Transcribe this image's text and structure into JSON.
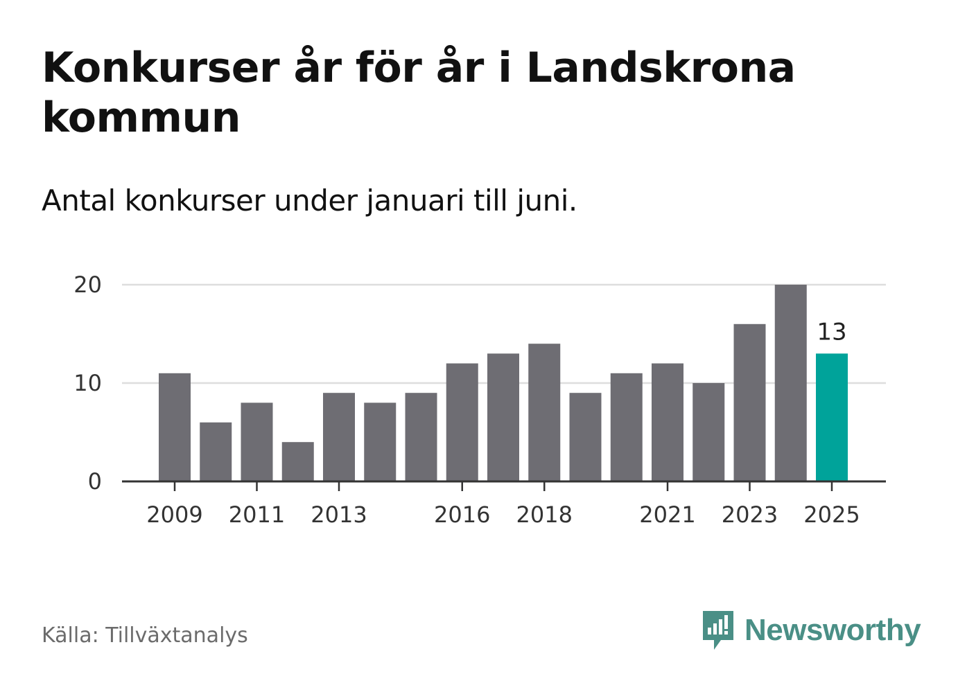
{
  "title": "Konkurser år för år i Landskrona kommun",
  "subtitle": "Antal konkurser under januari till juni.",
  "source": "Källa: Tillväxtanalys",
  "brand": {
    "name": "Newsworthy",
    "icon": "newsworthy-logo-icon",
    "color": "#4a8f86"
  },
  "colors": {
    "bar": "#6e6d73",
    "highlight": "#00a39a",
    "grid": "#dddddd",
    "axis": "#333333"
  },
  "chart_data": {
    "type": "bar",
    "x": [
      2009,
      2010,
      2011,
      2012,
      2013,
      2014,
      2015,
      2016,
      2017,
      2018,
      2019,
      2020,
      2021,
      2022,
      2023,
      2024,
      2025
    ],
    "values": [
      11,
      6,
      8,
      4,
      9,
      8,
      9,
      12,
      13,
      14,
      9,
      11,
      12,
      10,
      16,
      20,
      13
    ],
    "x_tick_labels": [
      "2009",
      "2011",
      "2013",
      "2016",
      "2018",
      "2021",
      "2023",
      "2025"
    ],
    "y_ticks": [
      0,
      10,
      20
    ],
    "ylim": [
      0,
      20
    ],
    "grid": true,
    "highlight": {
      "x": 2025,
      "label": "13"
    }
  }
}
